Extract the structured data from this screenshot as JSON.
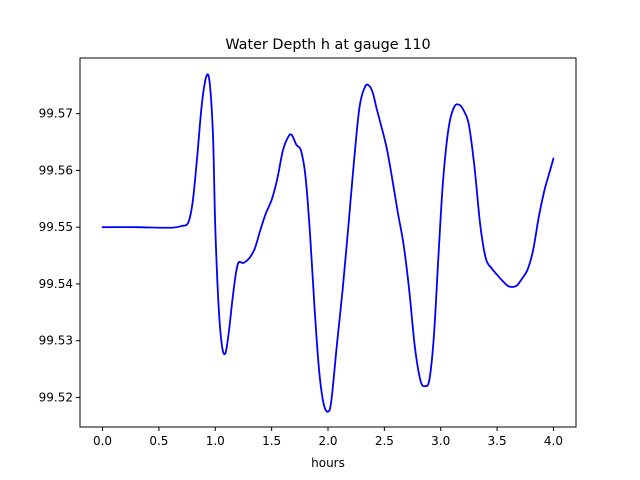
{
  "chart_data": {
    "type": "line",
    "title": "Water Depth h at gauge 110",
    "xlabel": "hours",
    "ylabel": "",
    "xlim": [
      -0.2,
      4.2
    ],
    "ylim": [
      99.5148,
      99.5798
    ],
    "xticks": [
      0.0,
      0.5,
      1.0,
      1.5,
      2.0,
      2.5,
      3.0,
      3.5,
      4.0
    ],
    "xtick_labels": [
      "0.0",
      "0.5",
      "1.0",
      "1.5",
      "2.0",
      "2.5",
      "3.0",
      "3.5",
      "4.0"
    ],
    "yticks": [
      99.52,
      99.53,
      99.54,
      99.55,
      99.56,
      99.57
    ],
    "ytick_labels": [
      "99.52",
      "99.53",
      "99.54",
      "99.55",
      "99.56",
      "99.57"
    ],
    "grid": false,
    "series": [
      {
        "color": "#0000ff",
        "x": [
          0.0,
          0.3,
          0.6,
          0.7,
          0.76,
          0.8,
          0.84,
          0.88,
          0.92,
          0.95,
          0.98,
          1.0,
          1.03,
          1.06,
          1.09,
          1.12,
          1.16,
          1.2,
          1.25,
          1.3,
          1.35,
          1.4,
          1.45,
          1.5,
          1.55,
          1.6,
          1.65,
          1.68,
          1.72,
          1.76,
          1.8,
          1.84,
          1.88,
          1.92,
          1.96,
          2.0,
          2.03,
          2.08,
          2.13,
          2.18,
          2.23,
          2.28,
          2.33,
          2.37,
          2.4,
          2.43,
          2.47,
          2.52,
          2.57,
          2.62,
          2.67,
          2.72,
          2.77,
          2.82,
          2.86,
          2.9,
          2.94,
          2.98,
          3.02,
          3.07,
          3.12,
          3.17,
          3.21,
          3.25,
          3.3,
          3.35,
          3.4,
          3.45,
          3.5,
          3.55,
          3.6,
          3.65,
          3.68,
          3.72,
          3.77,
          3.82,
          3.87,
          3.92,
          3.96,
          4.0
        ],
        "y": [
          99.55,
          99.55,
          99.5499,
          99.5502,
          99.5508,
          99.5545,
          99.5625,
          99.5715,
          99.5765,
          99.5755,
          99.566,
          99.55,
          99.536,
          99.529,
          99.5278,
          99.5315,
          99.5385,
          99.5435,
          99.5437,
          99.5445,
          99.5462,
          99.5495,
          99.5525,
          99.5548,
          99.5585,
          99.5635,
          99.566,
          99.5662,
          99.5645,
          99.5635,
          99.559,
          99.549,
          99.536,
          99.525,
          99.519,
          99.5175,
          99.5195,
          99.5295,
          99.539,
          99.55,
          99.5615,
          99.5712,
          99.5748,
          99.5748,
          99.5735,
          99.571,
          99.568,
          99.564,
          99.5585,
          99.5525,
          99.547,
          99.539,
          99.529,
          99.523,
          99.522,
          99.5232,
          99.531,
          99.545,
          99.558,
          99.5675,
          99.5712,
          99.5715,
          99.5703,
          99.568,
          99.5605,
          99.5505,
          99.5445,
          99.5428,
          99.5416,
          99.5405,
          99.5396,
          99.5395,
          99.5398,
          99.5409,
          99.5425,
          99.546,
          99.5518,
          99.5565,
          99.5593,
          99.5621
        ]
      }
    ]
  }
}
